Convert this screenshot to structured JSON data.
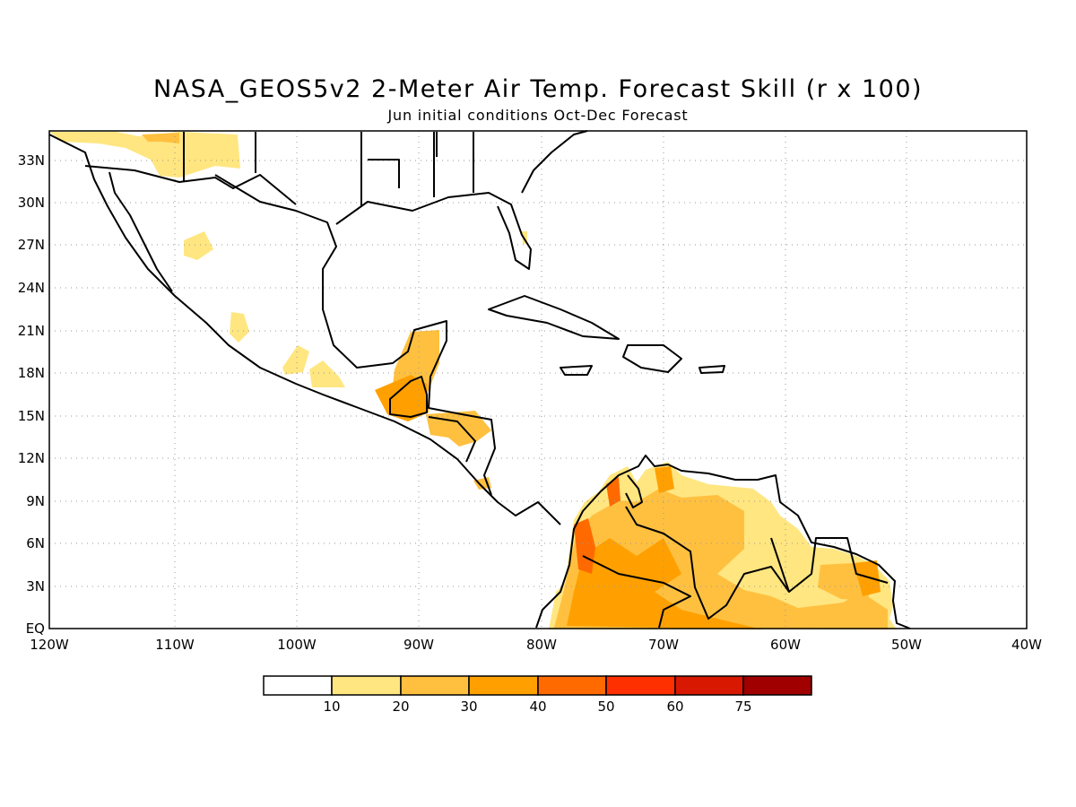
{
  "title": "NASA_GEOS5v2 2-Meter Air Temp. Forecast Skill (r x 100)",
  "subtitle": "Jun initial conditions  Oct-Dec Forecast",
  "map": {
    "lat_labels": [
      "33N",
      "30N",
      "27N",
      "24N",
      "21N",
      "18N",
      "15N",
      "12N",
      "9N",
      "6N",
      "3N",
      "EQ"
    ],
    "lon_labels": [
      "120W",
      "110W",
      "100W",
      "90W",
      "80W",
      "70W",
      "60W",
      "50W",
      "40W"
    ],
    "grid": "dotted"
  },
  "colorbar": {
    "ticks": [
      "10",
      "20",
      "30",
      "40",
      "50",
      "60",
      "75"
    ],
    "colors": [
      "#ffffff",
      "#ffe680",
      "#ffc040",
      "#ffa000",
      "#ff6a00",
      "#ff3000",
      "#d81800",
      "#a00000"
    ]
  }
}
